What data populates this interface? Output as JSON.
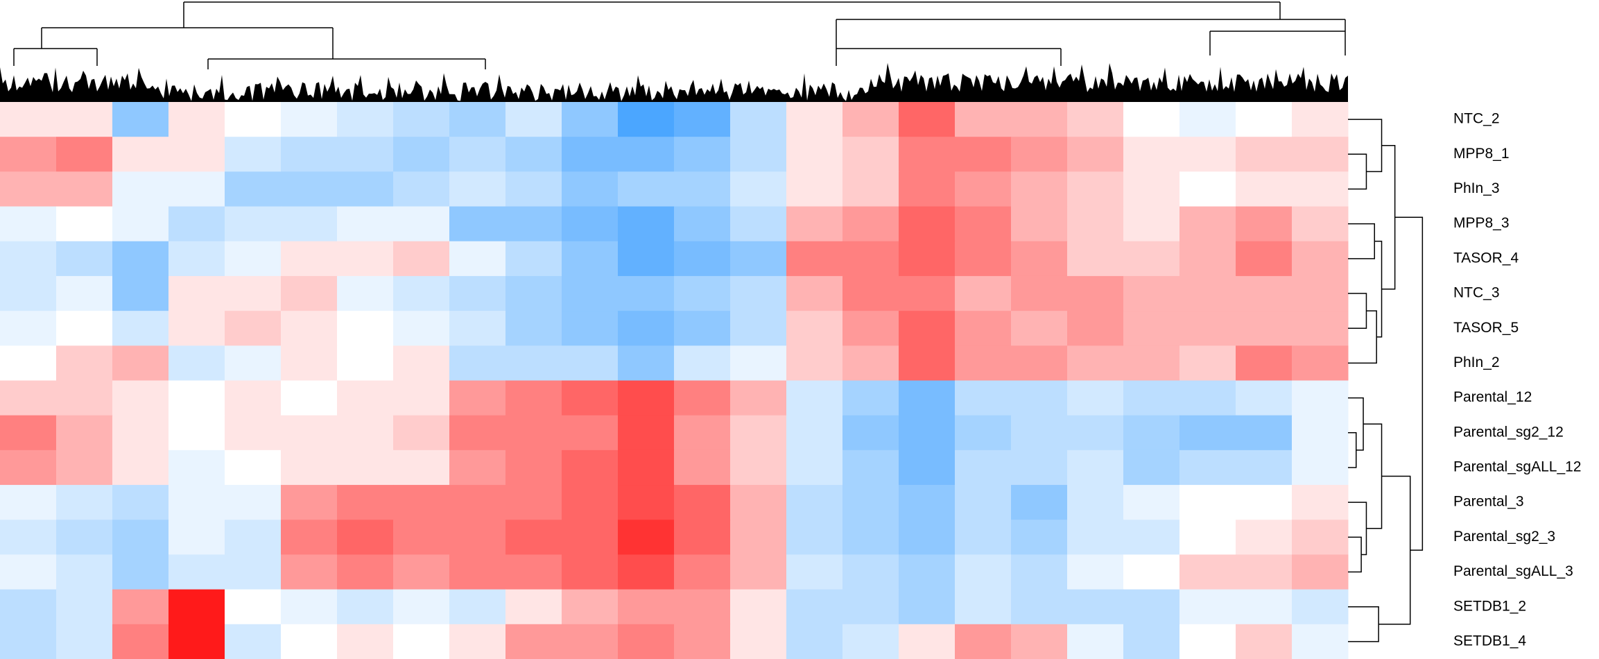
{
  "chart_data": {
    "type": "heatmap",
    "rows": [
      "NTC_2",
      "MPP8_1",
      "PhIn_3",
      "MPP8_3",
      "TASOR_4",
      "NTC_3",
      "TASOR_5",
      "PhIn_2",
      "Parental_12",
      "Parental_sg2_12",
      "Parental_sgALL_12",
      "Parental_3",
      "Parental_sg2_3",
      "Parental_sgALL_3",
      "SETDB1_2",
      "SETDB1_4"
    ],
    "values": [
      [
        0.1,
        0.1,
        -0.5,
        0.1,
        0,
        -0.1,
        -0.2,
        -0.3,
        -0.4,
        -0.2,
        -0.5,
        -0.8,
        -0.7,
        -0.3,
        0.1,
        0.3,
        0.6,
        0.3,
        0.3,
        0.2,
        0,
        -0.1,
        0,
        0.1
      ],
      [
        0.4,
        0.5,
        0.1,
        0.1,
        -0.2,
        -0.3,
        -0.3,
        -0.4,
        -0.3,
        -0.4,
        -0.6,
        -0.6,
        -0.5,
        -0.3,
        0.1,
        0.2,
        0.5,
        0.5,
        0.4,
        0.3,
        0.1,
        0.1,
        0.2,
        0.2
      ],
      [
        0.3,
        0.3,
        -0.1,
        -0.1,
        -0.4,
        -0.4,
        -0.4,
        -0.3,
        -0.2,
        -0.3,
        -0.5,
        -0.4,
        -0.4,
        -0.2,
        0.1,
        0.2,
        0.5,
        0.4,
        0.3,
        0.2,
        0.1,
        0,
        0.1,
        0.1
      ],
      [
        -0.1,
        0,
        -0.1,
        -0.3,
        -0.2,
        -0.2,
        -0.1,
        -0.1,
        -0.5,
        -0.5,
        -0.6,
        -0.7,
        -0.5,
        -0.3,
        0.3,
        0.4,
        0.6,
        0.5,
        0.3,
        0.2,
        0.1,
        0.3,
        0.4,
        0.2
      ],
      [
        -0.2,
        -0.3,
        -0.5,
        -0.2,
        -0.1,
        0.1,
        0.1,
        0.2,
        -0.1,
        -0.3,
        -0.5,
        -0.7,
        -0.6,
        -0.5,
        0.5,
        0.5,
        0.6,
        0.5,
        0.4,
        0.2,
        0.2,
        0.3,
        0.5,
        0.3
      ],
      [
        -0.2,
        -0.1,
        -0.5,
        0.1,
        0.1,
        0.2,
        -0.1,
        -0.2,
        -0.3,
        -0.4,
        -0.5,
        -0.5,
        -0.4,
        -0.3,
        0.3,
        0.5,
        0.5,
        0.3,
        0.4,
        0.4,
        0.3,
        0.3,
        0.3,
        0.3
      ],
      [
        -0.1,
        0,
        -0.2,
        0.1,
        0.2,
        0.1,
        0,
        -0.1,
        -0.2,
        -0.4,
        -0.5,
        -0.6,
        -0.5,
        -0.3,
        0.2,
        0.4,
        0.6,
        0.4,
        0.3,
        0.4,
        0.3,
        0.3,
        0.3,
        0.3
      ],
      [
        0,
        0.2,
        0.3,
        -0.2,
        -0.1,
        0.1,
        0,
        0.1,
        -0.3,
        -0.3,
        -0.3,
        -0.5,
        -0.2,
        -0.1,
        0.2,
        0.3,
        0.6,
        0.4,
        0.4,
        0.3,
        0.3,
        0.2,
        0.5,
        0.4
      ],
      [
        0.2,
        0.2,
        0.1,
        0,
        0.1,
        0,
        0.1,
        0.1,
        0.4,
        0.5,
        0.6,
        0.7,
        0.5,
        0.3,
        -0.2,
        -0.4,
        -0.6,
        -0.3,
        -0.3,
        -0.2,
        -0.3,
        -0.3,
        -0.2,
        -0.1
      ],
      [
        0.5,
        0.3,
        0.1,
        0,
        0.1,
        0.1,
        0.1,
        0.2,
        0.5,
        0.5,
        0.5,
        0.7,
        0.4,
        0.2,
        -0.2,
        -0.5,
        -0.6,
        -0.4,
        -0.3,
        -0.3,
        -0.4,
        -0.5,
        -0.5,
        -0.1
      ],
      [
        0.4,
        0.3,
        0.1,
        -0.1,
        0,
        0.1,
        0.1,
        0.1,
        0.4,
        0.5,
        0.6,
        0.7,
        0.4,
        0.2,
        -0.2,
        -0.4,
        -0.6,
        -0.3,
        -0.3,
        -0.2,
        -0.4,
        -0.3,
        -0.3,
        -0.1
      ],
      [
        -0.1,
        -0.2,
        -0.3,
        -0.1,
        -0.1,
        0.4,
        0.5,
        0.5,
        0.5,
        0.5,
        0.6,
        0.7,
        0.6,
        0.3,
        -0.3,
        -0.4,
        -0.5,
        -0.3,
        -0.5,
        -0.2,
        -0.1,
        0,
        0,
        0.1
      ],
      [
        -0.2,
        -0.3,
        -0.4,
        -0.1,
        -0.2,
        0.5,
        0.6,
        0.5,
        0.5,
        0.6,
        0.6,
        0.8,
        0.6,
        0.3,
        -0.3,
        -0.4,
        -0.5,
        -0.3,
        -0.4,
        -0.2,
        -0.2,
        0,
        0.1,
        0.2
      ],
      [
        -0.1,
        -0.2,
        -0.4,
        -0.2,
        -0.2,
        0.4,
        0.5,
        0.4,
        0.5,
        0.5,
        0.6,
        0.7,
        0.5,
        0.3,
        -0.2,
        -0.3,
        -0.4,
        -0.2,
        -0.3,
        -0.1,
        0,
        0.2,
        0.2,
        0.3
      ],
      [
        -0.3,
        -0.2,
        0.4,
        0.9,
        0,
        -0.1,
        -0.2,
        -0.1,
        -0.2,
        0.1,
        0.3,
        0.4,
        0.4,
        0.1,
        -0.3,
        -0.3,
        -0.4,
        -0.2,
        -0.3,
        -0.3,
        -0.3,
        -0.1,
        -0.1,
        -0.2
      ],
      [
        -0.3,
        -0.2,
        0.5,
        0.9,
        -0.2,
        0,
        0.1,
        0,
        0.1,
        0.4,
        0.4,
        0.5,
        0.4,
        0.1,
        -0.3,
        -0.2,
        0.1,
        0.4,
        0.3,
        -0.1,
        -0.3,
        0,
        0.2,
        -0.1
      ]
    ],
    "zlim": [
      -1,
      1
    ],
    "colors": [
      "#1e90ff",
      "#ffffff",
      "#ff0000"
    ]
  }
}
